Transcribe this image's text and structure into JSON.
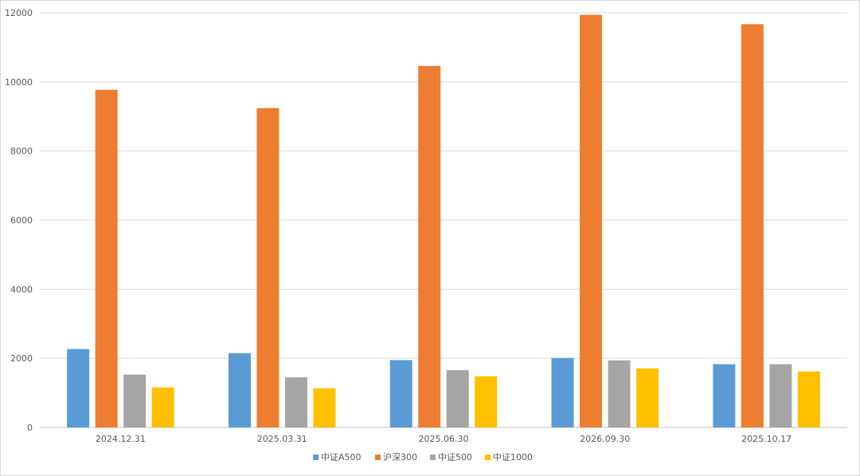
{
  "chart_data": {
    "type": "bar",
    "categories": [
      "2024.12.31",
      "2025.03.31",
      "2025.06.30",
      "2026.09.30",
      "2025.10.17"
    ],
    "series": [
      {
        "name": "中证A500",
        "color": "#5b9bd5",
        "values": [
          2270,
          2150,
          1950,
          2010,
          1830
        ]
      },
      {
        "name": "沪深300",
        "color": "#ed7d31",
        "values": [
          9770,
          9240,
          10460,
          11940,
          11670
        ]
      },
      {
        "name": "中证500",
        "color": "#a5a5a5",
        "values": [
          1530,
          1450,
          1660,
          1940,
          1830
        ]
      },
      {
        "name": "中证1000",
        "color": "#ffc000",
        "values": [
          1160,
          1130,
          1480,
          1710,
          1620
        ]
      }
    ],
    "ylim": [
      0,
      12000
    ],
    "yticks": [
      "0",
      "2000",
      "4000",
      "6000",
      "8000",
      "10000",
      "12000"
    ],
    "grid": true,
    "legend_position": "bottom",
    "title": "",
    "xlabel": "",
    "ylabel": ""
  }
}
